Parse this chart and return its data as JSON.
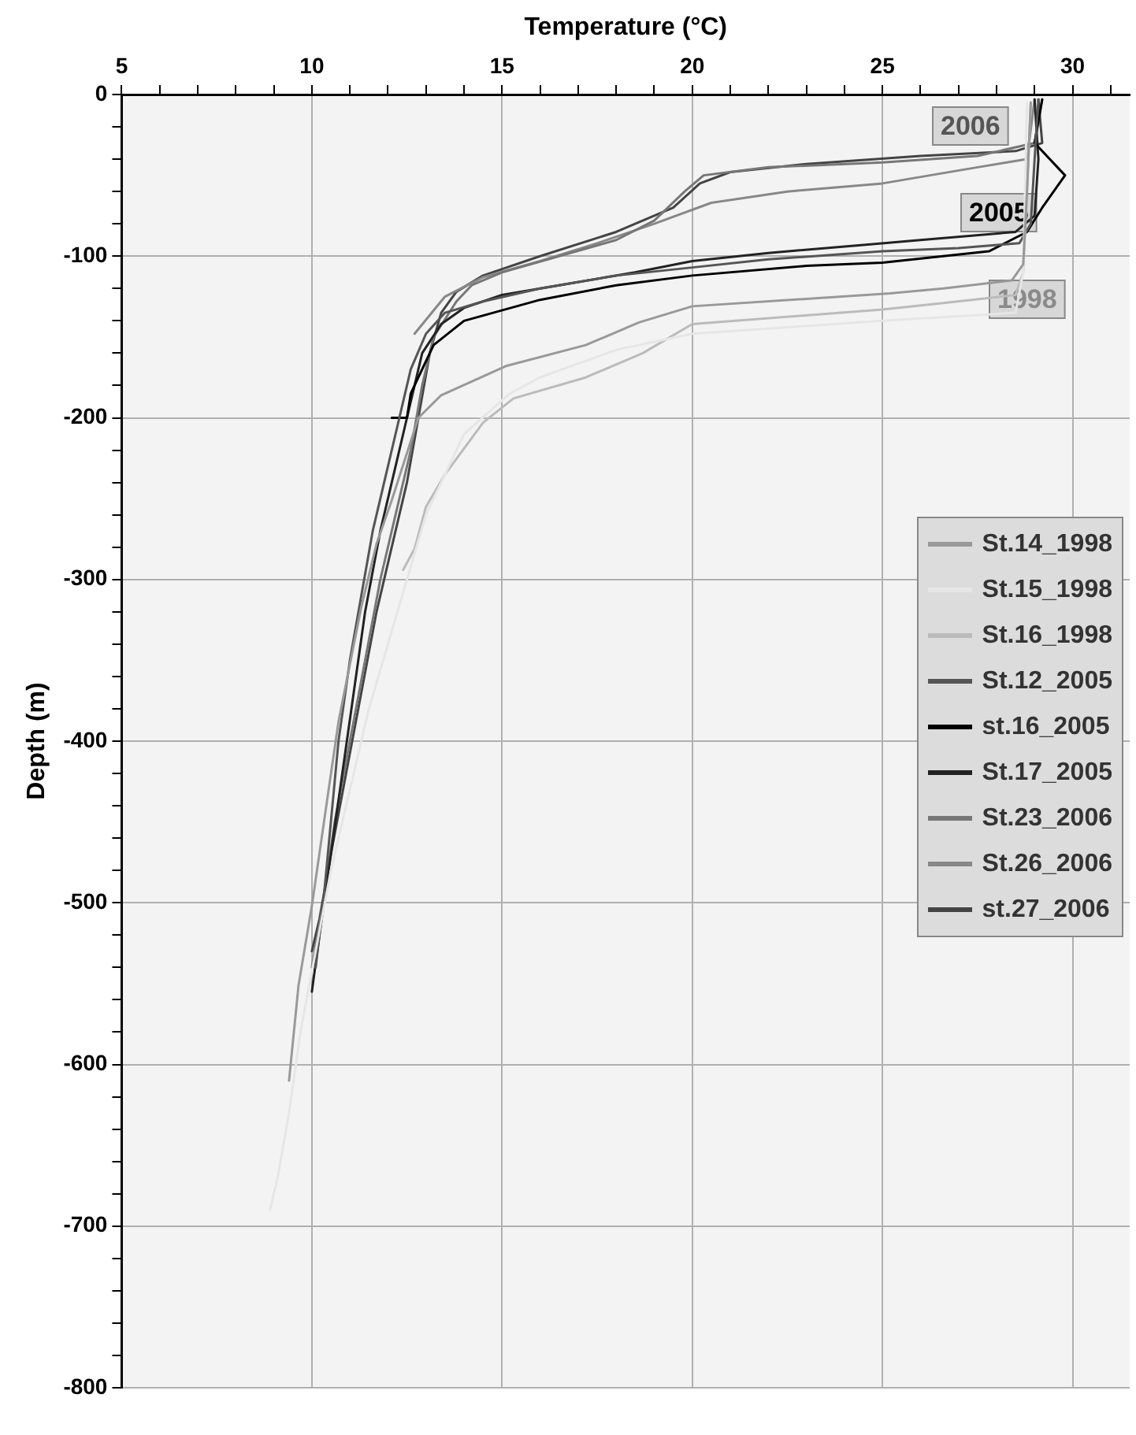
{
  "chart_data": {
    "type": "line",
    "xlabel": "Temperature (°C)",
    "ylabel": "Depth (m)",
    "xlim": [
      5,
      31.5
    ],
    "ylim": [
      -800,
      0
    ],
    "xticks": [
      5,
      {
        "value": 6,
        "label": null
      },
      {
        "value": 7,
        "label": null
      },
      {
        "value": 8,
        "label": null
      },
      {
        "value": 9,
        "label": null
      },
      10,
      {
        "value": 11,
        "label": null
      },
      {
        "value": 12,
        "label": null
      },
      {
        "value": 13,
        "label": null
      },
      {
        "value": 14,
        "label": null
      },
      15,
      {
        "value": 16,
        "label": null
      },
      {
        "value": 17,
        "label": null
      },
      {
        "value": 18,
        "label": null
      },
      {
        "value": 19,
        "label": null
      },
      20,
      {
        "value": 21,
        "label": null
      },
      {
        "value": 22,
        "label": null
      },
      {
        "value": 23,
        "label": null
      },
      {
        "value": 24,
        "label": null
      },
      25,
      {
        "value": 26,
        "label": null
      },
      {
        "value": 27,
        "label": null
      },
      {
        "value": 28,
        "label": null
      },
      {
        "value": 29,
        "label": null
      },
      30,
      {
        "value": 31,
        "label": null
      }
    ],
    "yticks": [
      -800,
      {
        "value": -780,
        "label": null
      },
      {
        "value": -760,
        "label": null
      },
      {
        "value": -740,
        "label": null
      },
      {
        "value": -720,
        "label": null
      },
      -700,
      {
        "value": -680,
        "label": null
      },
      {
        "value": -660,
        "label": null
      },
      {
        "value": -640,
        "label": null
      },
      {
        "value": -620,
        "label": null
      },
      -600,
      {
        "value": -580,
        "label": null
      },
      {
        "value": -560,
        "label": null
      },
      {
        "value": -540,
        "label": null
      },
      {
        "value": -520,
        "label": null
      },
      -500,
      {
        "value": -480,
        "label": null
      },
      {
        "value": -460,
        "label": null
      },
      {
        "value": -440,
        "label": null
      },
      {
        "value": -420,
        "label": null
      },
      -400,
      {
        "value": -380,
        "label": null
      },
      {
        "value": -360,
        "label": null
      },
      {
        "value": -340,
        "label": null
      },
      {
        "value": -320,
        "label": null
      },
      -300,
      {
        "value": -280,
        "label": null
      },
      {
        "value": -260,
        "label": null
      },
      {
        "value": -240,
        "label": null
      },
      {
        "value": -220,
        "label": null
      },
      -200,
      {
        "value": -180,
        "label": null
      },
      {
        "value": -160,
        "label": null
      },
      {
        "value": -140,
        "label": null
      },
      {
        "value": -120,
        "label": null
      },
      -100,
      {
        "value": -80,
        "label": null
      },
      {
        "value": -60,
        "label": null
      },
      {
        "value": -40,
        "label": null
      },
      {
        "value": -20,
        "label": null
      },
      0
    ],
    "grid": true,
    "legend": "right",
    "marker": "none",
    "line_style": "solid",
    "annotations": [
      "2006",
      "2005",
      "1998"
    ],
    "series": [
      {
        "name": "St.14_1998",
        "color": "#999999",
        "x": [
          28.9,
          28.8,
          28.7,
          28.4,
          26.6,
          25.2,
          20,
          18.6,
          17.2,
          15.1,
          13.4,
          12.8,
          12.1,
          11.7,
          11.3,
          10.7,
          10.3,
          10,
          9.65,
          9.4
        ],
        "values": [
          -5,
          -60,
          -105,
          -115,
          -120,
          -123,
          -131,
          -141,
          -155,
          -168,
          -186,
          -200,
          -251,
          -278,
          -317,
          -388,
          -453,
          -502,
          -551,
          -610
        ]
      },
      {
        "name": "St.15_1998",
        "color": "#e6e6e6",
        "x": [
          28.8,
          28.7,
          28.5,
          25,
          20,
          18,
          16,
          15.2,
          14,
          13.6,
          13,
          12.5,
          12,
          11.5,
          11,
          10.5,
          10.1,
          9.7,
          9.4,
          9.1,
          8.9
        ],
        "values": [
          -5,
          -110,
          -135,
          -140,
          -148,
          -158,
          -175,
          -185,
          -210,
          -230,
          -260,
          -300,
          -340,
          -380,
          -430,
          -480,
          -530,
          -580,
          -630,
          -670,
          -690
        ]
      },
      {
        "name": "St.16_1998",
        "color": "#bbbbbb",
        "x": [
          28.9,
          28.8,
          28.7,
          28.5,
          26.6,
          25,
          20,
          18.7,
          17.2,
          15.3,
          14.5,
          13.5,
          13,
          12.7,
          12.4
        ],
        "values": [
          -5,
          -60,
          -110,
          -124,
          -129,
          -133,
          -142,
          -160,
          -175,
          -188,
          -203,
          -235,
          -255,
          -281,
          -294
        ]
      },
      {
        "name": "St.12_2005",
        "color": "#555555",
        "x": [
          29.1,
          29,
          28.9,
          28.6,
          27,
          25,
          22,
          20,
          18,
          16,
          14.5,
          13.5,
          13,
          12.6,
          12.3,
          12,
          11.6,
          11.3,
          11,
          10.7,
          10.5,
          10.3,
          10.1
        ],
        "values": [
          -3,
          -40,
          -80,
          -92,
          -95,
          -97,
          -102,
          -107,
          -112,
          -120,
          -128,
          -135,
          -148,
          -170,
          -200,
          -230,
          -270,
          -310,
          -350,
          -400,
          -450,
          -500,
          -540
        ]
      },
      {
        "name": "st.16_2005",
        "color": "#000000",
        "x": [
          29.2,
          29,
          29.8,
          29.2,
          28.8,
          27.8,
          25,
          23,
          20,
          18,
          16,
          14,
          13.2,
          13,
          12.6,
          12.5,
          12.1
        ],
        "values": [
          -3,
          -30,
          -50,
          -70,
          -85,
          -97,
          -104,
          -106,
          -112,
          -118,
          -127,
          -140,
          -155,
          -165,
          -185,
          -200,
          -200
        ]
      },
      {
        "name": "St.17_2005",
        "color": "#222222",
        "x": [
          29,
          29.1,
          29,
          28.5,
          26,
          24.5,
          22,
          20,
          18.5,
          16.5,
          15,
          14,
          13.4,
          12.9,
          12.6,
          12.2,
          11.8,
          11.4,
          11.1,
          10.8,
          10.5,
          10.2,
          10
        ],
        "values": [
          -3,
          -40,
          -75,
          -85,
          -90,
          -93,
          -98,
          -103,
          -110,
          -118,
          -124,
          -132,
          -142,
          -160,
          -190,
          -230,
          -270,
          -320,
          -370,
          -420,
          -470,
          -520,
          -555
        ]
      },
      {
        "name": "St.23_2006",
        "color": "#777777",
        "x": [
          29.2,
          29,
          27.5,
          25,
          22,
          20.3,
          19.8,
          19,
          18,
          16.5,
          15,
          14.2,
          13.8,
          13.2,
          12.9,
          12.6,
          12.2,
          11.8,
          11.4,
          11,
          10.6,
          10.3,
          10
        ],
        "values": [
          -3,
          -30,
          -38,
          -42,
          -45,
          -50,
          -60,
          -78,
          -90,
          -100,
          -110,
          -118,
          -128,
          -150,
          -180,
          -220,
          -260,
          -300,
          -350,
          -400,
          -450,
          -500,
          -540
        ]
      },
      {
        "name": "St.26_2006",
        "color": "#888888",
        "x": [
          29,
          28.8,
          27.5,
          25,
          22.5,
          20.5,
          19,
          17.5,
          16,
          14.5,
          13.5,
          12.7
        ],
        "values": [
          -3,
          -40,
          -45,
          -55,
          -60,
          -67,
          -80,
          -92,
          -103,
          -113,
          -125,
          -148
        ]
      },
      {
        "name": "st.27_2006",
        "color": "#444444",
        "x": [
          29.1,
          29.2,
          28.5,
          26,
          23,
          21,
          20.2,
          19.5,
          18,
          16,
          14.5,
          13.8,
          13.4,
          13.1,
          12.8,
          12.5,
          12.1,
          11.7,
          11.3,
          10.9,
          10.5,
          10.2,
          10
        ],
        "values": [
          -3,
          -30,
          -35,
          -38,
          -43,
          -48,
          -55,
          -70,
          -85,
          -100,
          -112,
          -122,
          -135,
          -160,
          -200,
          -240,
          -280,
          -320,
          -370,
          -420,
          -470,
          -510,
          -530
        ]
      }
    ]
  }
}
